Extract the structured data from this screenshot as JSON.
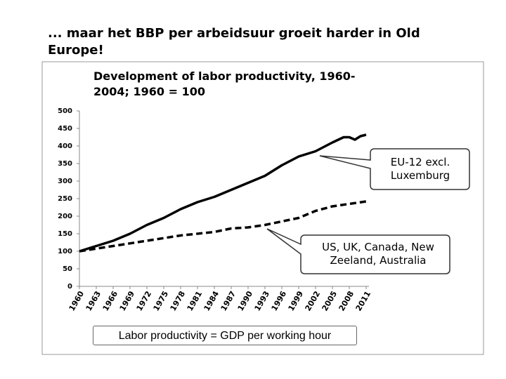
{
  "chart_data": {
    "type": "line",
    "slide_title": "... maar het BBP per arbeidsuur groeit harder in Old Europe!",
    "title": "Development of labor productivity, 1960-2004; 1960 = 100",
    "footnote": "Labor productivity = GDP per working hour",
    "xlim": [
      1960,
      2011
    ],
    "xticks": [
      1960,
      1963,
      1966,
      1969,
      1972,
      1975,
      1978,
      1981,
      1984,
      1987,
      1990,
      1993,
      1996,
      1999,
      2002,
      2005,
      2008,
      2011
    ],
    "ylim": [
      0,
      500
    ],
    "yticks": [
      0,
      50,
      100,
      150,
      200,
      250,
      300,
      350,
      400,
      450,
      500
    ],
    "series": [
      {
        "name": "EU-12 excl. Luxemburg",
        "color": "#000000",
        "dashed": false,
        "x": [
          1960,
          1963,
          1966,
          1969,
          1972,
          1975,
          1978,
          1981,
          1984,
          1987,
          1990,
          1993,
          1996,
          1999,
          2002,
          2005,
          2007,
          2008,
          2009,
          2010,
          2011
        ],
        "values": [
          100,
          115,
          130,
          150,
          175,
          195,
          220,
          240,
          255,
          275,
          295,
          315,
          345,
          370,
          385,
          410,
          425,
          425,
          418,
          428,
          432
        ]
      },
      {
        "name": "US, UK, Canada, New Zeeland, Australia",
        "color": "#000000",
        "dashed": true,
        "x": [
          1960,
          1966,
          1972,
          1978,
          1984,
          1987,
          1990,
          1993,
          1996,
          1999,
          2002,
          2005,
          2008,
          2011
        ],
        "values": [
          100,
          115,
          130,
          145,
          155,
          165,
          168,
          175,
          185,
          195,
          215,
          228,
          235,
          242
        ]
      }
    ]
  }
}
